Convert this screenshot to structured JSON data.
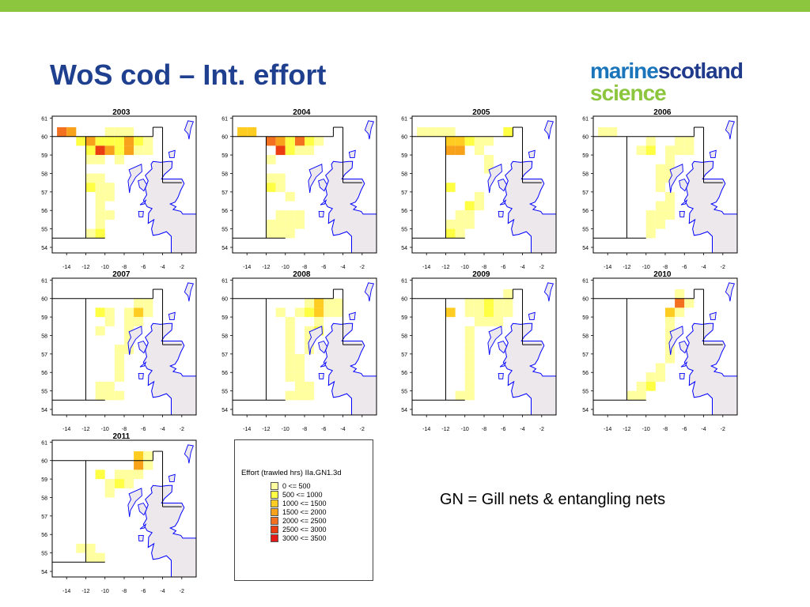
{
  "slide": {
    "title": "WoS cod – Int. effort",
    "note": "GN = Gill nets & entangling nets",
    "logo": {
      "word1": "marine",
      "word2": "scotland",
      "word3": "science"
    },
    "colors": {
      "top_bar": "#8cc63f",
      "title": "#1f3f8f",
      "land": "#ece8ec",
      "coast": "#0000ff"
    }
  },
  "legend": {
    "title": "Effort (trawled hrs) IIa.GN1.3d",
    "items": [
      {
        "label": "0 <= 500",
        "color": "#ffffa0"
      },
      {
        "label": "500 <= 1000",
        "color": "#ffff44"
      },
      {
        "label": "1000 <= 1500",
        "color": "#ffcc22"
      },
      {
        "label": "1500 <= 2000",
        "color": "#f8a21c"
      },
      {
        "label": "2000 <= 2500",
        "color": "#f27020"
      },
      {
        "label": "2500 <= 3000",
        "color": "#ea3d12"
      },
      {
        "label": "3000 <= 3500",
        "color": "#e41a1a"
      }
    ]
  },
  "chart_data": {
    "type": "heatmap",
    "x_ticks": [
      "-14",
      "-12",
      "-10",
      "-8",
      "-6",
      "-4",
      "-2"
    ],
    "y_ticks": [
      "61",
      "60",
      "59",
      "58",
      "57",
      "56",
      "55",
      "54"
    ],
    "xlim": [
      -15.5,
      -0.5
    ],
    "ylim": [
      53.7,
      61.1
    ],
    "cell_size_deg": [
      1,
      0.5
    ],
    "value_unit": "effort class index (1 = 0<=500 ... 7 = 3000<=3500)",
    "panels": [
      {
        "year": "2003",
        "cells": [
          [
            -14.5,
            60.25,
            5
          ],
          [
            -13.5,
            60.25,
            4
          ],
          [
            -12.5,
            59.75,
            2
          ],
          [
            -11.5,
            59.75,
            4
          ],
          [
            -10.5,
            59.75,
            2
          ],
          [
            -9.5,
            59.75,
            2
          ],
          [
            -8.5,
            59.75,
            2
          ],
          [
            -7.5,
            59.75,
            4
          ],
          [
            -6.5,
            59.75,
            2
          ],
          [
            -5.5,
            59.75,
            1
          ],
          [
            -9.5,
            60.25,
            1
          ],
          [
            -8.5,
            60.25,
            1
          ],
          [
            -7.5,
            60.25,
            1
          ],
          [
            -11.5,
            59.25,
            2
          ],
          [
            -10.5,
            59.25,
            6
          ],
          [
            -9.5,
            59.25,
            4
          ],
          [
            -8.5,
            59.25,
            2
          ],
          [
            -7.5,
            59.25,
            4
          ],
          [
            -6.5,
            59.25,
            1
          ],
          [
            -5.5,
            59.25,
            1
          ],
          [
            -11.5,
            58.75,
            1
          ],
          [
            -10.5,
            58.75,
            1
          ],
          [
            -8.5,
            58.75,
            1
          ],
          [
            -11.5,
            57.75,
            1
          ],
          [
            -10.5,
            57.75,
            1
          ],
          [
            -11.5,
            57.25,
            2
          ],
          [
            -10.5,
            57.25,
            1
          ],
          [
            -9.5,
            57.25,
            1
          ],
          [
            -10.5,
            56.75,
            1
          ],
          [
            -9.5,
            56.75,
            1
          ],
          [
            -10.5,
            56.25,
            1
          ],
          [
            -10.5,
            55.75,
            1
          ],
          [
            -9.5,
            55.75,
            1
          ],
          [
            -10.5,
            55.25,
            1
          ],
          [
            -11.5,
            54.75,
            1
          ],
          [
            -10.5,
            54.75,
            2
          ]
        ]
      },
      {
        "year": "2004",
        "cells": [
          [
            -14.5,
            60.25,
            3
          ],
          [
            -13.5,
            60.25,
            3
          ],
          [
            -11.5,
            59.75,
            5
          ],
          [
            -10.5,
            59.75,
            4
          ],
          [
            -9.5,
            59.75,
            2
          ],
          [
            -8.5,
            59.75,
            5
          ],
          [
            -7.5,
            59.75,
            2
          ],
          [
            -6.5,
            59.75,
            1
          ],
          [
            -10.5,
            59.25,
            6
          ],
          [
            -9.5,
            59.25,
            2
          ],
          [
            -8.5,
            59.25,
            1
          ],
          [
            -7.5,
            59.25,
            1
          ],
          [
            -11.5,
            58.75,
            1
          ],
          [
            -11.5,
            57.75,
            1
          ],
          [
            -10.5,
            57.75,
            1
          ],
          [
            -11.5,
            57.25,
            2
          ],
          [
            -10.5,
            57.25,
            1
          ],
          [
            -9.5,
            56.75,
            1
          ],
          [
            -10.5,
            55.75,
            1
          ],
          [
            -9.5,
            55.75,
            1
          ],
          [
            -8.5,
            55.75,
            1
          ],
          [
            -11.5,
            55.25,
            1
          ],
          [
            -10.5,
            55.25,
            1
          ],
          [
            -9.5,
            55.25,
            1
          ],
          [
            -8.5,
            55.25,
            1
          ],
          [
            -11.5,
            54.75,
            1
          ],
          [
            -10.5,
            54.75,
            1
          ],
          [
            -9.5,
            54.75,
            1
          ]
        ]
      },
      {
        "year": "2005",
        "cells": [
          [
            -14.5,
            60.25,
            1
          ],
          [
            -13.5,
            60.25,
            1
          ],
          [
            -12.5,
            60.25,
            1
          ],
          [
            -11.5,
            60.25,
            1
          ],
          [
            -11.5,
            59.75,
            3
          ],
          [
            -10.5,
            59.75,
            3
          ],
          [
            -9.5,
            59.75,
            2
          ],
          [
            -8.5,
            59.75,
            1
          ],
          [
            -7.5,
            59.75,
            1
          ],
          [
            -11.5,
            59.25,
            4
          ],
          [
            -10.5,
            59.25,
            4
          ],
          [
            -8.5,
            59.25,
            1
          ],
          [
            -7.5,
            58.75,
            1
          ],
          [
            -7.5,
            58.25,
            1
          ],
          [
            -11.5,
            57.25,
            2
          ],
          [
            -8.5,
            56.75,
            1
          ],
          [
            -9.5,
            56.25,
            2
          ],
          [
            -8.5,
            56.25,
            1
          ],
          [
            -10.5,
            55.75,
            1
          ],
          [
            -9.5,
            55.75,
            1
          ],
          [
            -11.5,
            55.25,
            1
          ],
          [
            -10.5,
            55.25,
            1
          ],
          [
            -9.5,
            55.25,
            1
          ],
          [
            -11.5,
            54.75,
            2
          ],
          [
            -10.5,
            54.75,
            1
          ],
          [
            -5.5,
            60.25,
            2
          ]
        ]
      },
      {
        "year": "2006",
        "cells": [
          [
            -14.5,
            60.25,
            1
          ],
          [
            -13.5,
            60.25,
            1
          ],
          [
            -9.5,
            59.75,
            1
          ],
          [
            -6.5,
            59.75,
            1
          ],
          [
            -10.5,
            59.25,
            1
          ],
          [
            -9.5,
            59.25,
            2
          ],
          [
            -7.5,
            59.25,
            1
          ],
          [
            -6.5,
            59.25,
            1
          ],
          [
            -5.5,
            59.25,
            1
          ],
          [
            -7.5,
            58.75,
            1
          ],
          [
            -8.5,
            58.25,
            1
          ],
          [
            -7.5,
            58.25,
            1
          ],
          [
            -8.5,
            57.75,
            1
          ],
          [
            -7.5,
            57.75,
            1
          ],
          [
            -8.5,
            57.25,
            1
          ],
          [
            -7.5,
            56.75,
            1
          ],
          [
            -8.5,
            56.25,
            1
          ],
          [
            -7.5,
            56.25,
            1
          ],
          [
            -9.5,
            55.75,
            1
          ],
          [
            -8.5,
            55.75,
            1
          ],
          [
            -7.5,
            55.75,
            1
          ],
          [
            -9.5,
            55.25,
            1
          ],
          [
            -8.5,
            55.25,
            1
          ],
          [
            -9.5,
            54.75,
            1
          ],
          [
            -5.5,
            59.75,
            1
          ]
        ]
      },
      {
        "year": "2007",
        "cells": [
          [
            -10.5,
            59.25,
            2
          ],
          [
            -9.5,
            59.25,
            1
          ],
          [
            -7.5,
            59.25,
            1
          ],
          [
            -6.5,
            59.25,
            3
          ],
          [
            -5.5,
            59.25,
            1
          ],
          [
            -6.5,
            59.75,
            1
          ],
          [
            -7.5,
            58.75,
            1
          ],
          [
            -6.5,
            58.75,
            1
          ],
          [
            -9.5,
            58.75,
            1
          ],
          [
            -10.5,
            58.25,
            1
          ],
          [
            -7.5,
            58.25,
            1
          ],
          [
            -7.5,
            57.75,
            1
          ],
          [
            -8.5,
            57.25,
            1
          ],
          [
            -7.5,
            57.25,
            1
          ],
          [
            -8.5,
            56.75,
            1
          ],
          [
            -8.5,
            56.25,
            1
          ],
          [
            -8.5,
            55.75,
            1
          ],
          [
            -9.5,
            55.25,
            1
          ],
          [
            -10.5,
            55.25,
            1
          ],
          [
            -10.5,
            54.75,
            1
          ],
          [
            -9.5,
            54.75,
            1
          ],
          [
            -8.5,
            54.75,
            1
          ],
          [
            -5.5,
            59.75,
            1
          ]
        ]
      },
      {
        "year": "2008",
        "cells": [
          [
            -7.5,
            59.75,
            1
          ],
          [
            -6.5,
            59.75,
            3
          ],
          [
            -5.5,
            59.75,
            1
          ],
          [
            -4.5,
            59.75,
            1
          ],
          [
            -10.5,
            59.25,
            1
          ],
          [
            -8.5,
            59.25,
            1
          ],
          [
            -7.5,
            59.25,
            2
          ],
          [
            -6.5,
            59.25,
            3
          ],
          [
            -5.5,
            59.25,
            1
          ],
          [
            -4.5,
            59.25,
            1
          ],
          [
            -9.5,
            58.75,
            1
          ],
          [
            -6.5,
            58.75,
            1
          ],
          [
            -9.5,
            58.25,
            1
          ],
          [
            -7.5,
            58.25,
            1
          ],
          [
            -6.5,
            58.25,
            2
          ],
          [
            -9.5,
            57.75,
            1
          ],
          [
            -7.5,
            57.75,
            1
          ],
          [
            -9.5,
            57.25,
            1
          ],
          [
            -7.5,
            57.25,
            1
          ],
          [
            -9.5,
            56.75,
            1
          ],
          [
            -8.5,
            56.75,
            1
          ],
          [
            -9.5,
            56.25,
            1
          ],
          [
            -8.5,
            56.25,
            1
          ],
          [
            -9.5,
            55.75,
            1
          ],
          [
            -8.5,
            55.75,
            1
          ],
          [
            -8.5,
            55.25,
            1
          ],
          [
            -7.5,
            55.25,
            1
          ],
          [
            -9.5,
            54.75,
            1
          ],
          [
            -8.5,
            54.75,
            1
          ],
          [
            -7.5,
            54.75,
            1
          ]
        ]
      },
      {
        "year": "2009",
        "cells": [
          [
            -9.5,
            59.75,
            1
          ],
          [
            -8.5,
            59.75,
            1
          ],
          [
            -7.5,
            59.75,
            2
          ],
          [
            -6.5,
            59.75,
            1
          ],
          [
            -5.5,
            59.75,
            1
          ],
          [
            -11.5,
            59.25,
            3
          ],
          [
            -9.5,
            59.25,
            1
          ],
          [
            -8.5,
            59.25,
            1
          ],
          [
            -7.5,
            59.25,
            2
          ],
          [
            -6.5,
            59.25,
            1
          ],
          [
            -5.5,
            59.25,
            1
          ],
          [
            -8.5,
            58.75,
            1
          ],
          [
            -7.5,
            58.75,
            1
          ],
          [
            -6.5,
            58.75,
            1
          ],
          [
            -9.5,
            58.25,
            1
          ],
          [
            -9.5,
            57.75,
            1
          ],
          [
            -9.5,
            57.25,
            1
          ],
          [
            -9.5,
            56.75,
            1
          ],
          [
            -9.5,
            56.25,
            1
          ],
          [
            -9.5,
            55.75,
            1
          ],
          [
            -9.5,
            55.25,
            1
          ],
          [
            -10.5,
            54.75,
            1
          ],
          [
            -9.5,
            54.75,
            1
          ],
          [
            -5.5,
            60.25,
            1
          ]
        ]
      },
      {
        "year": "2010",
        "cells": [
          [
            -6.5,
            60.25,
            1
          ],
          [
            -6.5,
            59.75,
            5
          ],
          [
            -5.5,
            59.75,
            1
          ],
          [
            -7.5,
            59.25,
            3
          ],
          [
            -6.5,
            59.25,
            1
          ],
          [
            -7.5,
            58.75,
            1
          ],
          [
            -7.5,
            58.25,
            1
          ],
          [
            -7.5,
            57.75,
            1
          ],
          [
            -7.5,
            57.25,
            1
          ],
          [
            -7.5,
            56.75,
            1
          ],
          [
            -8.5,
            56.25,
            1
          ],
          [
            -9.5,
            55.75,
            1
          ],
          [
            -8.5,
            55.75,
            1
          ],
          [
            -9.5,
            55.25,
            2
          ],
          [
            -10.5,
            55.25,
            1
          ],
          [
            -10.5,
            54.75,
            1
          ],
          [
            -11.5,
            54.75,
            1
          ]
        ]
      },
      {
        "year": "2011",
        "cells": [
          [
            -6.5,
            60.25,
            3
          ],
          [
            -5.5,
            60.25,
            1
          ],
          [
            -6.5,
            59.75,
            4
          ],
          [
            -5.5,
            59.75,
            1
          ],
          [
            -10.5,
            59.25,
            2
          ],
          [
            -8.5,
            59.25,
            1
          ],
          [
            -7.5,
            59.25,
            1
          ],
          [
            -6.5,
            59.25,
            1
          ],
          [
            -9.5,
            58.75,
            1
          ],
          [
            -8.5,
            58.75,
            2
          ],
          [
            -7.5,
            58.75,
            1
          ],
          [
            -9.5,
            58.25,
            1
          ],
          [
            -12.5,
            55.25,
            1
          ],
          [
            -11.5,
            55.25,
            1
          ],
          [
            -11.5,
            54.75,
            1
          ],
          [
            -10.5,
            54.75,
            1
          ]
        ]
      }
    ]
  }
}
